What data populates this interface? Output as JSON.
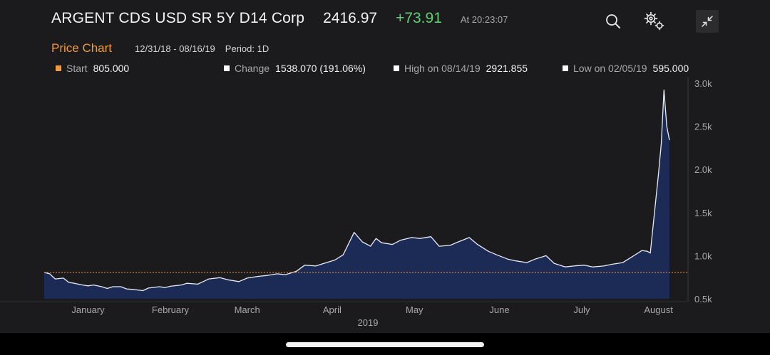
{
  "header": {
    "title": "ARGENT CDS USD SR 5Y D14 Corp",
    "last_price": "2416.97",
    "net_change": "+73.91",
    "timestamp": "At 20:23:07"
  },
  "toolbar": {
    "search_icon": "search-icon",
    "settings_icon": "gears-icon",
    "collapse_icon": "collapse-icon"
  },
  "subheader": {
    "chart_title": "Price Chart",
    "date_range": "12/31/18 - 08/16/19",
    "period": "Period: 1D"
  },
  "legend": {
    "start": {
      "label": "Start",
      "value": "805.000",
      "color": "#f39a3c"
    },
    "change": {
      "label": "Change",
      "value": "1538.070 (191.06%)",
      "color": "#ffffff"
    },
    "high": {
      "label": "High on 08/14/19",
      "value": "2921.855",
      "color": "#ffffff"
    },
    "low": {
      "label": "Low on 02/05/19",
      "value": "595.000",
      "color": "#ffffff"
    }
  },
  "colors": {
    "background": "#1b1b1d",
    "area_fill": "#1c2b55",
    "line": "#e8ecf5",
    "reference_line": "#f39a3c",
    "positive": "#5fd071"
  },
  "chart_data": {
    "type": "area",
    "title": "Price Chart",
    "xlabel": "2019",
    "ylabel": "",
    "x_tick_labels": [
      "January",
      "February",
      "March",
      "April",
      "May",
      "June",
      "July",
      "August"
    ],
    "y_tick_labels": [
      "3.0k",
      "2.5k",
      "2.0k",
      "1.5k",
      "1.0k",
      "0.5k"
    ],
    "y_ticks": [
      3000,
      2500,
      2000,
      1500,
      1000,
      500
    ],
    "ylim": [
      500,
      3000
    ],
    "xlim": [
      "2018-12-31",
      "2019-08-16"
    ],
    "reference_line": {
      "label": "Start",
      "value": 805
    },
    "grid": false,
    "series": [
      {
        "values_x": [
          "2018-12-31",
          "2019-01-02",
          "2019-01-04",
          "2019-01-07",
          "2019-01-09",
          "2019-01-11",
          "2019-01-14",
          "2019-01-16",
          "2019-01-18",
          "2019-01-21",
          "2019-01-23",
          "2019-01-25",
          "2019-01-28",
          "2019-01-30",
          "2019-02-01",
          "2019-02-05",
          "2019-02-07",
          "2019-02-11",
          "2019-02-13",
          "2019-02-15",
          "2019-02-19",
          "2019-02-21",
          "2019-02-25",
          "2019-02-27",
          "2019-03-01",
          "2019-03-05",
          "2019-03-08",
          "2019-03-12",
          "2019-03-15",
          "2019-03-19",
          "2019-03-22",
          "2019-03-26",
          "2019-03-29",
          "2019-04-02",
          "2019-04-05",
          "2019-04-09",
          "2019-04-12",
          "2019-04-16",
          "2019-04-19",
          "2019-04-23",
          "2019-04-26",
          "2019-04-29",
          "2019-05-01",
          "2019-05-03",
          "2019-05-07",
          "2019-05-10",
          "2019-05-14",
          "2019-05-17",
          "2019-05-21",
          "2019-05-24",
          "2019-05-28",
          "2019-05-31",
          "2019-06-04",
          "2019-06-07",
          "2019-06-11",
          "2019-06-14",
          "2019-06-18",
          "2019-06-21",
          "2019-06-25",
          "2019-06-28",
          "2019-07-02",
          "2019-07-05",
          "2019-07-09",
          "2019-07-12",
          "2019-07-16",
          "2019-07-19",
          "2019-07-23",
          "2019-07-26",
          "2019-07-30",
          "2019-08-02",
          "2019-08-06",
          "2019-08-08",
          "2019-08-09",
          "2019-08-12",
          "2019-08-13",
          "2019-08-14",
          "2019-08-15",
          "2019-08-16"
        ],
        "values": [
          805,
          790,
          730,
          740,
          690,
          680,
          660,
          650,
          660,
          640,
          620,
          640,
          640,
          615,
          610,
          595,
          625,
          640,
          630,
          645,
          660,
          680,
          670,
          700,
          730,
          745,
          720,
          700,
          740,
          760,
          770,
          790,
          780,
          820,
          890,
          880,
          910,
          950,
          1010,
          1270,
          1160,
          1110,
          1200,
          1150,
          1130,
          1180,
          1210,
          1200,
          1220,
          1110,
          1120,
          1160,
          1210,
          1130,
          1050,
          1010,
          960,
          940,
          920,
          960,
          1000,
          910,
          870,
          880,
          890,
          870,
          880,
          900,
          920,
          980,
          1060,
          1050,
          1030,
          1950,
          2300,
          2921.855,
          2500,
          2340
        ]
      }
    ]
  }
}
